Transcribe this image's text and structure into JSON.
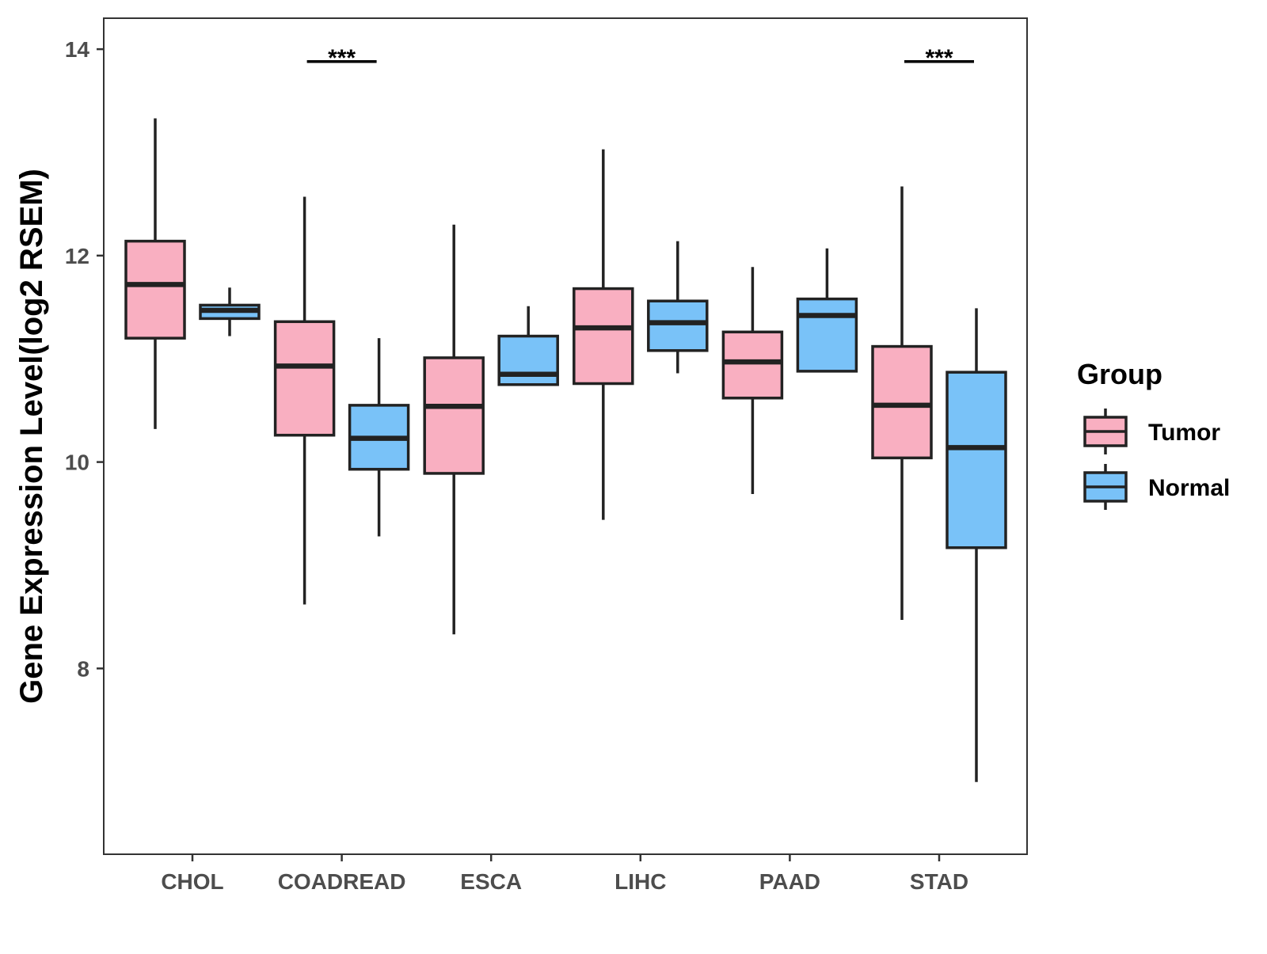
{
  "chart_data": {
    "type": "boxplot",
    "title": "",
    "xlabel": "",
    "ylabel": "Gene Expression Level(log2 RSEM)",
    "ylim": [
      6.2,
      14.3
    ],
    "y_ticks": [
      {
        "value": 8,
        "label": "8"
      },
      {
        "value": 10,
        "label": "10"
      },
      {
        "value": 12,
        "label": "12"
      },
      {
        "value": 14,
        "label": "14"
      }
    ],
    "categories": [
      "CHOL",
      "COADREAD",
      "ESCA",
      "LIHC",
      "PAAD",
      "STAD"
    ],
    "legend": {
      "title": "Group",
      "position": "right",
      "entries": [
        {
          "name": "Tumor",
          "color": "#F9AFC1"
        },
        {
          "name": "Normal",
          "color": "#79C2F8"
        }
      ]
    },
    "series": [
      {
        "name": "Tumor",
        "color": "#F9AFC1",
        "boxes": [
          {
            "category": "CHOL",
            "min": 10.32,
            "q1": 11.2,
            "median": 11.72,
            "q3": 12.14,
            "max": 13.33
          },
          {
            "category": "COADREAD",
            "min": 8.62,
            "q1": 10.26,
            "median": 10.93,
            "q3": 11.36,
            "max": 12.57
          },
          {
            "category": "ESCA",
            "min": 8.33,
            "q1": 9.89,
            "median": 10.54,
            "q3": 11.01,
            "max": 12.3
          },
          {
            "category": "LIHC",
            "min": 9.44,
            "q1": 10.76,
            "median": 11.3,
            "q3": 11.68,
            "max": 13.03
          },
          {
            "category": "PAAD",
            "min": 9.69,
            "q1": 10.62,
            "median": 10.97,
            "q3": 11.26,
            "max": 11.89
          },
          {
            "category": "STAD",
            "min": 8.47,
            "q1": 10.04,
            "median": 10.55,
            "q3": 11.12,
            "max": 12.67
          }
        ]
      },
      {
        "name": "Normal",
        "color": "#79C2F8",
        "boxes": [
          {
            "category": "CHOL",
            "min": 11.22,
            "q1": 11.39,
            "median": 11.47,
            "q3": 11.52,
            "max": 11.69
          },
          {
            "category": "COADREAD",
            "min": 9.28,
            "q1": 9.93,
            "median": 10.23,
            "q3": 10.55,
            "max": 11.2
          },
          {
            "category": "ESCA",
            "min": 10.75,
            "q1": 10.75,
            "median": 10.85,
            "q3": 11.22,
            "max": 11.51
          },
          {
            "category": "LIHC",
            "min": 10.86,
            "q1": 11.08,
            "median": 11.35,
            "q3": 11.56,
            "max": 12.14
          },
          {
            "category": "PAAD",
            "min": 10.88,
            "q1": 10.88,
            "median": 11.42,
            "q3": 11.58,
            "max": 12.07
          },
          {
            "category": "STAD",
            "min": 6.9,
            "q1": 9.17,
            "median": 10.14,
            "q3": 10.87,
            "max": 11.49
          }
        ]
      }
    ],
    "annotations": [
      {
        "category": "COADREAD",
        "text": "***",
        "y": 13.88
      },
      {
        "category": "STAD",
        "text": "***",
        "y": 13.88
      }
    ]
  }
}
